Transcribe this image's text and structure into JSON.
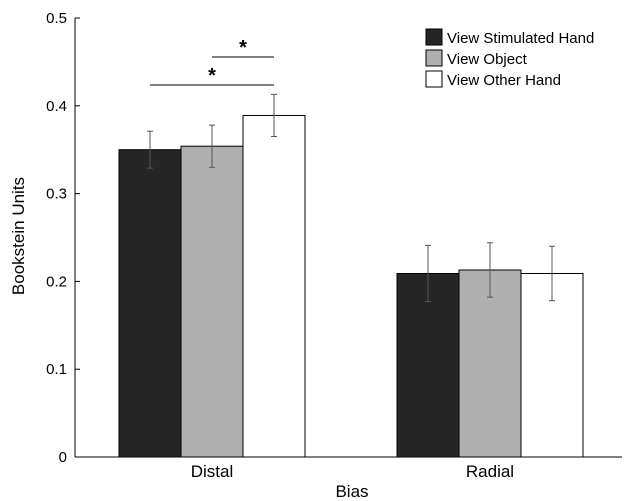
{
  "chart_data": {
    "type": "bar",
    "xlabel": "Bias",
    "ylabel": "Bookstein Units",
    "ylim": [
      0,
      0.5
    ],
    "yticks": [
      "0",
      "0.1",
      "0.2",
      "0.3",
      "0.4",
      "0.5"
    ],
    "categories": [
      "Distal",
      "Radial"
    ],
    "series": [
      {
        "name": "View Stimulated Hand",
        "color": "#262626",
        "values": [
          0.35,
          0.209
        ],
        "errors": [
          0.021,
          0.032
        ]
      },
      {
        "name": "View Object",
        "color": "#b0b0b0",
        "values": [
          0.354,
          0.213
        ],
        "errors": [
          0.024,
          0.031
        ]
      },
      {
        "name": "View Other Hand",
        "color": "#ffffff",
        "values": [
          0.389,
          0.209
        ],
        "errors": [
          0.024,
          0.031
        ]
      }
    ],
    "legend_position": "top-right",
    "annotations": [
      {
        "label": "*",
        "category": "Distal",
        "from_series": 1,
        "to_series": 2
      },
      {
        "label": "*",
        "category": "Distal",
        "from_series": 0,
        "to_series": 2
      }
    ],
    "grid": false
  }
}
